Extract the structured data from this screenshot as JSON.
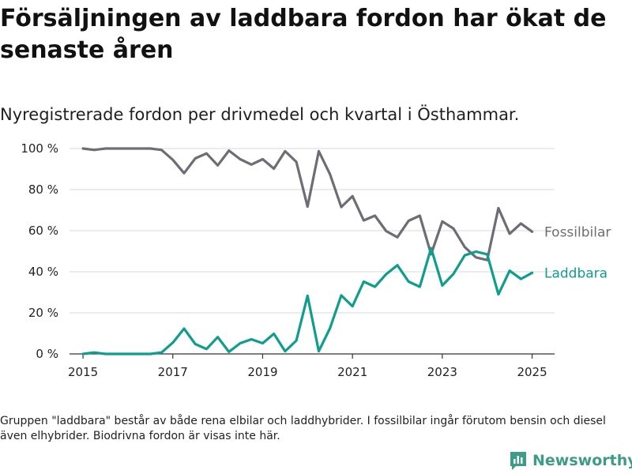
{
  "title": "Försäljningen av laddbara fordon har ökat de senaste åren",
  "subtitle": "Nyregistrerade fordon per drivmedel och kvartal i Östhammar.",
  "footnote": "Gruppen \"laddbara\" består av både rena elbilar och laddhybrider. I fossilbilar ingår förutom bensin och diesel även elhybrider. Biodrivna fordon är visas inte här.",
  "brand": {
    "name": "Newsworthy",
    "color": "#3d9c86",
    "icon": "newsworthy-logo-icon"
  },
  "colors": {
    "fossil": "#6e6c75",
    "laddbara": "#0f9d8c",
    "grid": "#d9d9d9",
    "axis": "#333333"
  },
  "chart_data": {
    "type": "line",
    "x": [
      2015,
      2015.25,
      2015.5,
      2015.75,
      2016,
      2016.25,
      2016.5,
      2016.75,
      2017,
      2017.25,
      2017.5,
      2017.75,
      2018,
      2018.25,
      2018.5,
      2018.75,
      2019,
      2019.25,
      2019.5,
      2019.75,
      2020,
      2020.25,
      2020.5,
      2020.75,
      2021,
      2021.25,
      2021.5,
      2021.75,
      2022,
      2022.25,
      2022.5,
      2022.75,
      2023,
      2023.25,
      2023.5,
      2023.75,
      2024,
      2024.25,
      2024.5,
      2024.75,
      2025
    ],
    "series": [
      {
        "name": "Fossilbilar",
        "values": [
          100,
          99.3,
          100,
          100,
          100,
          100,
          100,
          99.3,
          94.5,
          88,
          95.2,
          97.6,
          91.8,
          99,
          94.8,
          92.2,
          94.8,
          90.2,
          98.7,
          93.5,
          71.7,
          98.7,
          87.5,
          71.5,
          76.8,
          65,
          67.3,
          59.8,
          56.8,
          64.8,
          67.3,
          48.5,
          64.5,
          61,
          52,
          47,
          45.7,
          71,
          58.5,
          63.5,
          59.5
        ]
      },
      {
        "name": "Laddbara",
        "values": [
          0,
          0.7,
          0,
          0,
          0,
          0,
          0,
          0.7,
          5.5,
          12.3,
          4.8,
          2.4,
          8.2,
          1,
          5.2,
          7.1,
          5.2,
          9.8,
          1.3,
          6.5,
          28.3,
          1.3,
          12.5,
          28.5,
          23.2,
          35.2,
          32.7,
          38.8,
          43.2,
          35.2,
          32.7,
          51.5,
          33.3,
          39,
          48,
          49.8,
          48.5,
          29,
          40.5,
          36.5,
          39.5
        ]
      }
    ],
    "x_ticks": [
      "2015",
      "2017",
      "2019",
      "2021",
      "2023",
      "2025"
    ],
    "y_ticks": [
      "0 %",
      "20 %",
      "40 %",
      "60 %",
      "80 %",
      "100 %"
    ],
    "xlim": [
      2014.7,
      2025.5
    ],
    "ylim": [
      0,
      100
    ],
    "grid": "horizontal",
    "legend": "inline labels at line ends"
  }
}
